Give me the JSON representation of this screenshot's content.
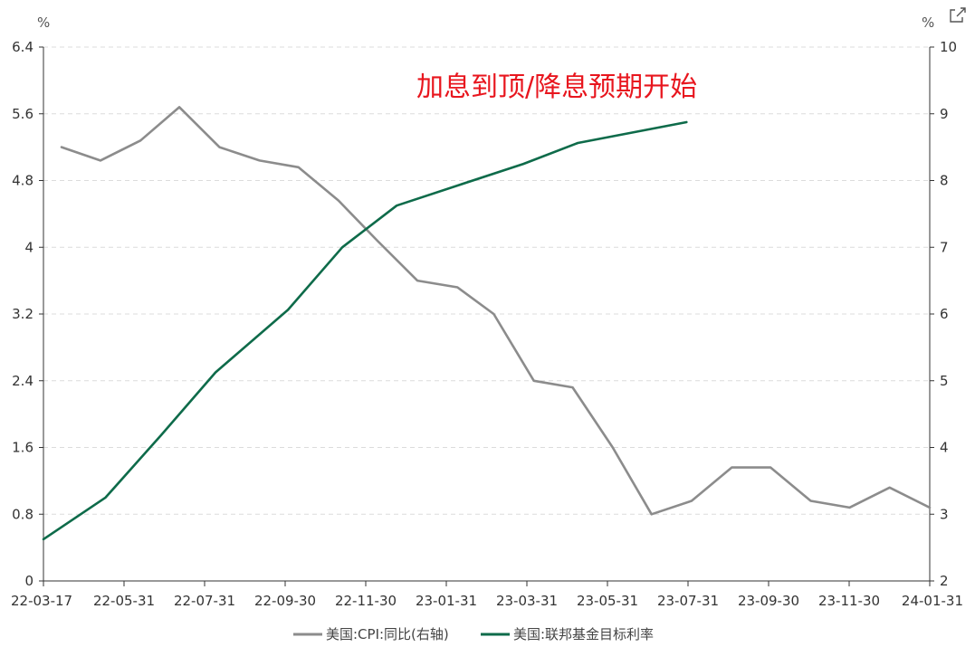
{
  "chart_data": {
    "type": "line",
    "title": "",
    "annotation": "加息到顶/降息预期开始",
    "left_axis": {
      "unit": "%",
      "ylim": [
        0,
        6.4
      ],
      "ticks": [
        0,
        0.8,
        1.6,
        2.4,
        3.2,
        4,
        4.8,
        5.6,
        6.4
      ],
      "tick_labels": [
        "0",
        "0.8",
        "1.6",
        "2.4",
        "3.2",
        "4",
        "4.8",
        "5.6",
        "6.4"
      ]
    },
    "right_axis": {
      "unit": "%",
      "ylim": [
        2,
        10
      ],
      "ticks": [
        2,
        3,
        4,
        5,
        6,
        7,
        8,
        9,
        10
      ],
      "tick_labels": [
        "2",
        "3",
        "4",
        "5",
        "6",
        "7",
        "8",
        "9",
        "10"
      ]
    },
    "x_axis": {
      "labels": [
        "22-03-17",
        "22-05-31",
        "22-07-31",
        "22-09-30",
        "22-11-30",
        "23-01-31",
        "23-03-31",
        "23-05-31",
        "23-07-31",
        "23-09-30",
        "23-11-30",
        "24-01-31"
      ]
    },
    "grid": true,
    "legend_position": "bottom-center",
    "series": [
      {
        "name": "美国:CPI:同比(右轴)",
        "axis": "right",
        "color": "#8c8c8c",
        "points": [
          {
            "x": "2022-03-31",
            "y": 8.5
          },
          {
            "x": "2022-04-30",
            "y": 8.3
          },
          {
            "x": "2022-05-31",
            "y": 8.6
          },
          {
            "x": "2022-06-30",
            "y": 9.1
          },
          {
            "x": "2022-07-31",
            "y": 8.5
          },
          {
            "x": "2022-08-31",
            "y": 8.3
          },
          {
            "x": "2022-09-30",
            "y": 8.2
          },
          {
            "x": "2022-10-31",
            "y": 7.7
          },
          {
            "x": "2022-11-30",
            "y": 7.1
          },
          {
            "x": "2022-12-31",
            "y": 6.5
          },
          {
            "x": "2023-01-31",
            "y": 6.4
          },
          {
            "x": "2023-02-28",
            "y": 6.0
          },
          {
            "x": "2023-03-31",
            "y": 5.0
          },
          {
            "x": "2023-04-30",
            "y": 4.9
          },
          {
            "x": "2023-05-31",
            "y": 4.0
          },
          {
            "x": "2023-06-30",
            "y": 3.0
          },
          {
            "x": "2023-07-31",
            "y": 3.2
          },
          {
            "x": "2023-08-31",
            "y": 3.7
          },
          {
            "x": "2023-09-30",
            "y": 3.7
          },
          {
            "x": "2023-10-31",
            "y": 3.2
          },
          {
            "x": "2023-11-30",
            "y": 3.1
          },
          {
            "x": "2023-12-31",
            "y": 3.4
          },
          {
            "x": "2024-01-31",
            "y": 3.1
          }
        ]
      },
      {
        "name": "美国:联邦基金目标利率",
        "axis": "left",
        "color": "#0e6b4a",
        "points": [
          {
            "x": "2022-03-17",
            "y": 0.5
          },
          {
            "x": "2022-05-04",
            "y": 1.0
          },
          {
            "x": "2022-06-16",
            "y": 1.75
          },
          {
            "x": "2022-07-28",
            "y": 2.5
          },
          {
            "x": "2022-09-22",
            "y": 3.25
          },
          {
            "x": "2022-11-03",
            "y": 4.0
          },
          {
            "x": "2022-12-15",
            "y": 4.5
          },
          {
            "x": "2023-02-02",
            "y": 4.75
          },
          {
            "x": "2023-03-23",
            "y": 5.0
          },
          {
            "x": "2023-05-04",
            "y": 5.25
          },
          {
            "x": "2023-07-27",
            "y": 5.5
          }
        ]
      }
    ]
  },
  "toolbar": {
    "export_icon": "external-link-icon"
  }
}
